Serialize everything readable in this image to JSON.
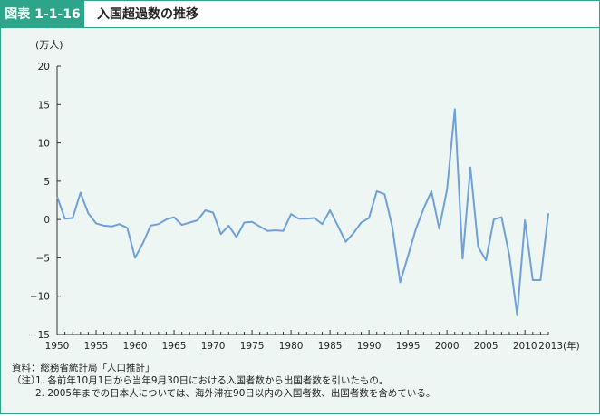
{
  "figure": {
    "label": "図表 1-1-16",
    "title": "入国超過数の推移"
  },
  "chart_data": {
    "type": "line",
    "unit_label": "(万人)",
    "x_end_label": "2013(年)",
    "x": [
      1950,
      1951,
      1952,
      1953,
      1954,
      1955,
      1956,
      1957,
      1958,
      1959,
      1960,
      1961,
      1962,
      1963,
      1964,
      1965,
      1966,
      1967,
      1968,
      1969,
      1970,
      1971,
      1972,
      1973,
      1974,
      1975,
      1976,
      1977,
      1978,
      1979,
      1980,
      1981,
      1982,
      1983,
      1984,
      1985,
      1986,
      1987,
      1988,
      1989,
      1990,
      1991,
      1992,
      1993,
      1994,
      1995,
      1996,
      1997,
      1998,
      1999,
      2000,
      2001,
      2002,
      2003,
      2004,
      2005,
      2006,
      2007,
      2008,
      2009,
      2010,
      2011,
      2012,
      2013
    ],
    "series": [
      {
        "values": [
          3.0,
          0.1,
          0.2,
          3.5,
          0.8,
          -0.5,
          -0.8,
          -0.9,
          -0.6,
          -1.1,
          -5.0,
          -3.1,
          -0.8,
          -0.6,
          0.0,
          0.3,
          -0.7,
          -0.4,
          -0.1,
          1.2,
          0.9,
          -1.9,
          -0.8,
          -2.3,
          -0.4,
          -0.3,
          -0.9,
          -1.5,
          -1.4,
          -1.5,
          0.7,
          0.1,
          0.1,
          0.2,
          -0.6,
          1.2,
          -0.8,
          -2.9,
          -1.8,
          -0.4,
          0.2,
          3.7,
          3.3,
          -1.0,
          -8.2,
          -4.8,
          -1.3,
          1.4,
          3.7,
          -1.2,
          3.9,
          14.4,
          -5.1,
          6.8,
          -3.6,
          -5.3,
          0.0,
          0.3,
          -4.7,
          -12.5,
          -0.1,
          -7.9,
          -7.9,
          0.8
        ],
        "color": "#6fa0d6"
      }
    ],
    "ylim": [
      -15,
      20
    ],
    "yticks": [
      "20",
      "15",
      "10",
      "5",
      "0",
      "−5",
      "−10",
      "−15"
    ],
    "xticks": [
      "1950",
      "1955",
      "1960",
      "1965",
      "1970",
      "1975",
      "1980",
      "1985",
      "1990",
      "1995",
      "2000",
      "2005",
      "2010"
    ],
    "grid": false
  },
  "notes": {
    "source": "資料：総務省統計局「人口推計」",
    "note_lead": "（注）",
    "note1": "1. 各前年10月1日から当年9月30日における入国者数から出国者数を引いたもの。",
    "note2": "2. 2005年までの日本人については、海外滞在90日以内の入国者数、出国者数を含めている。"
  },
  "colors": {
    "accent": "#2ca58a",
    "background": "#eef6f4",
    "line": "#6fa0d6"
  }
}
